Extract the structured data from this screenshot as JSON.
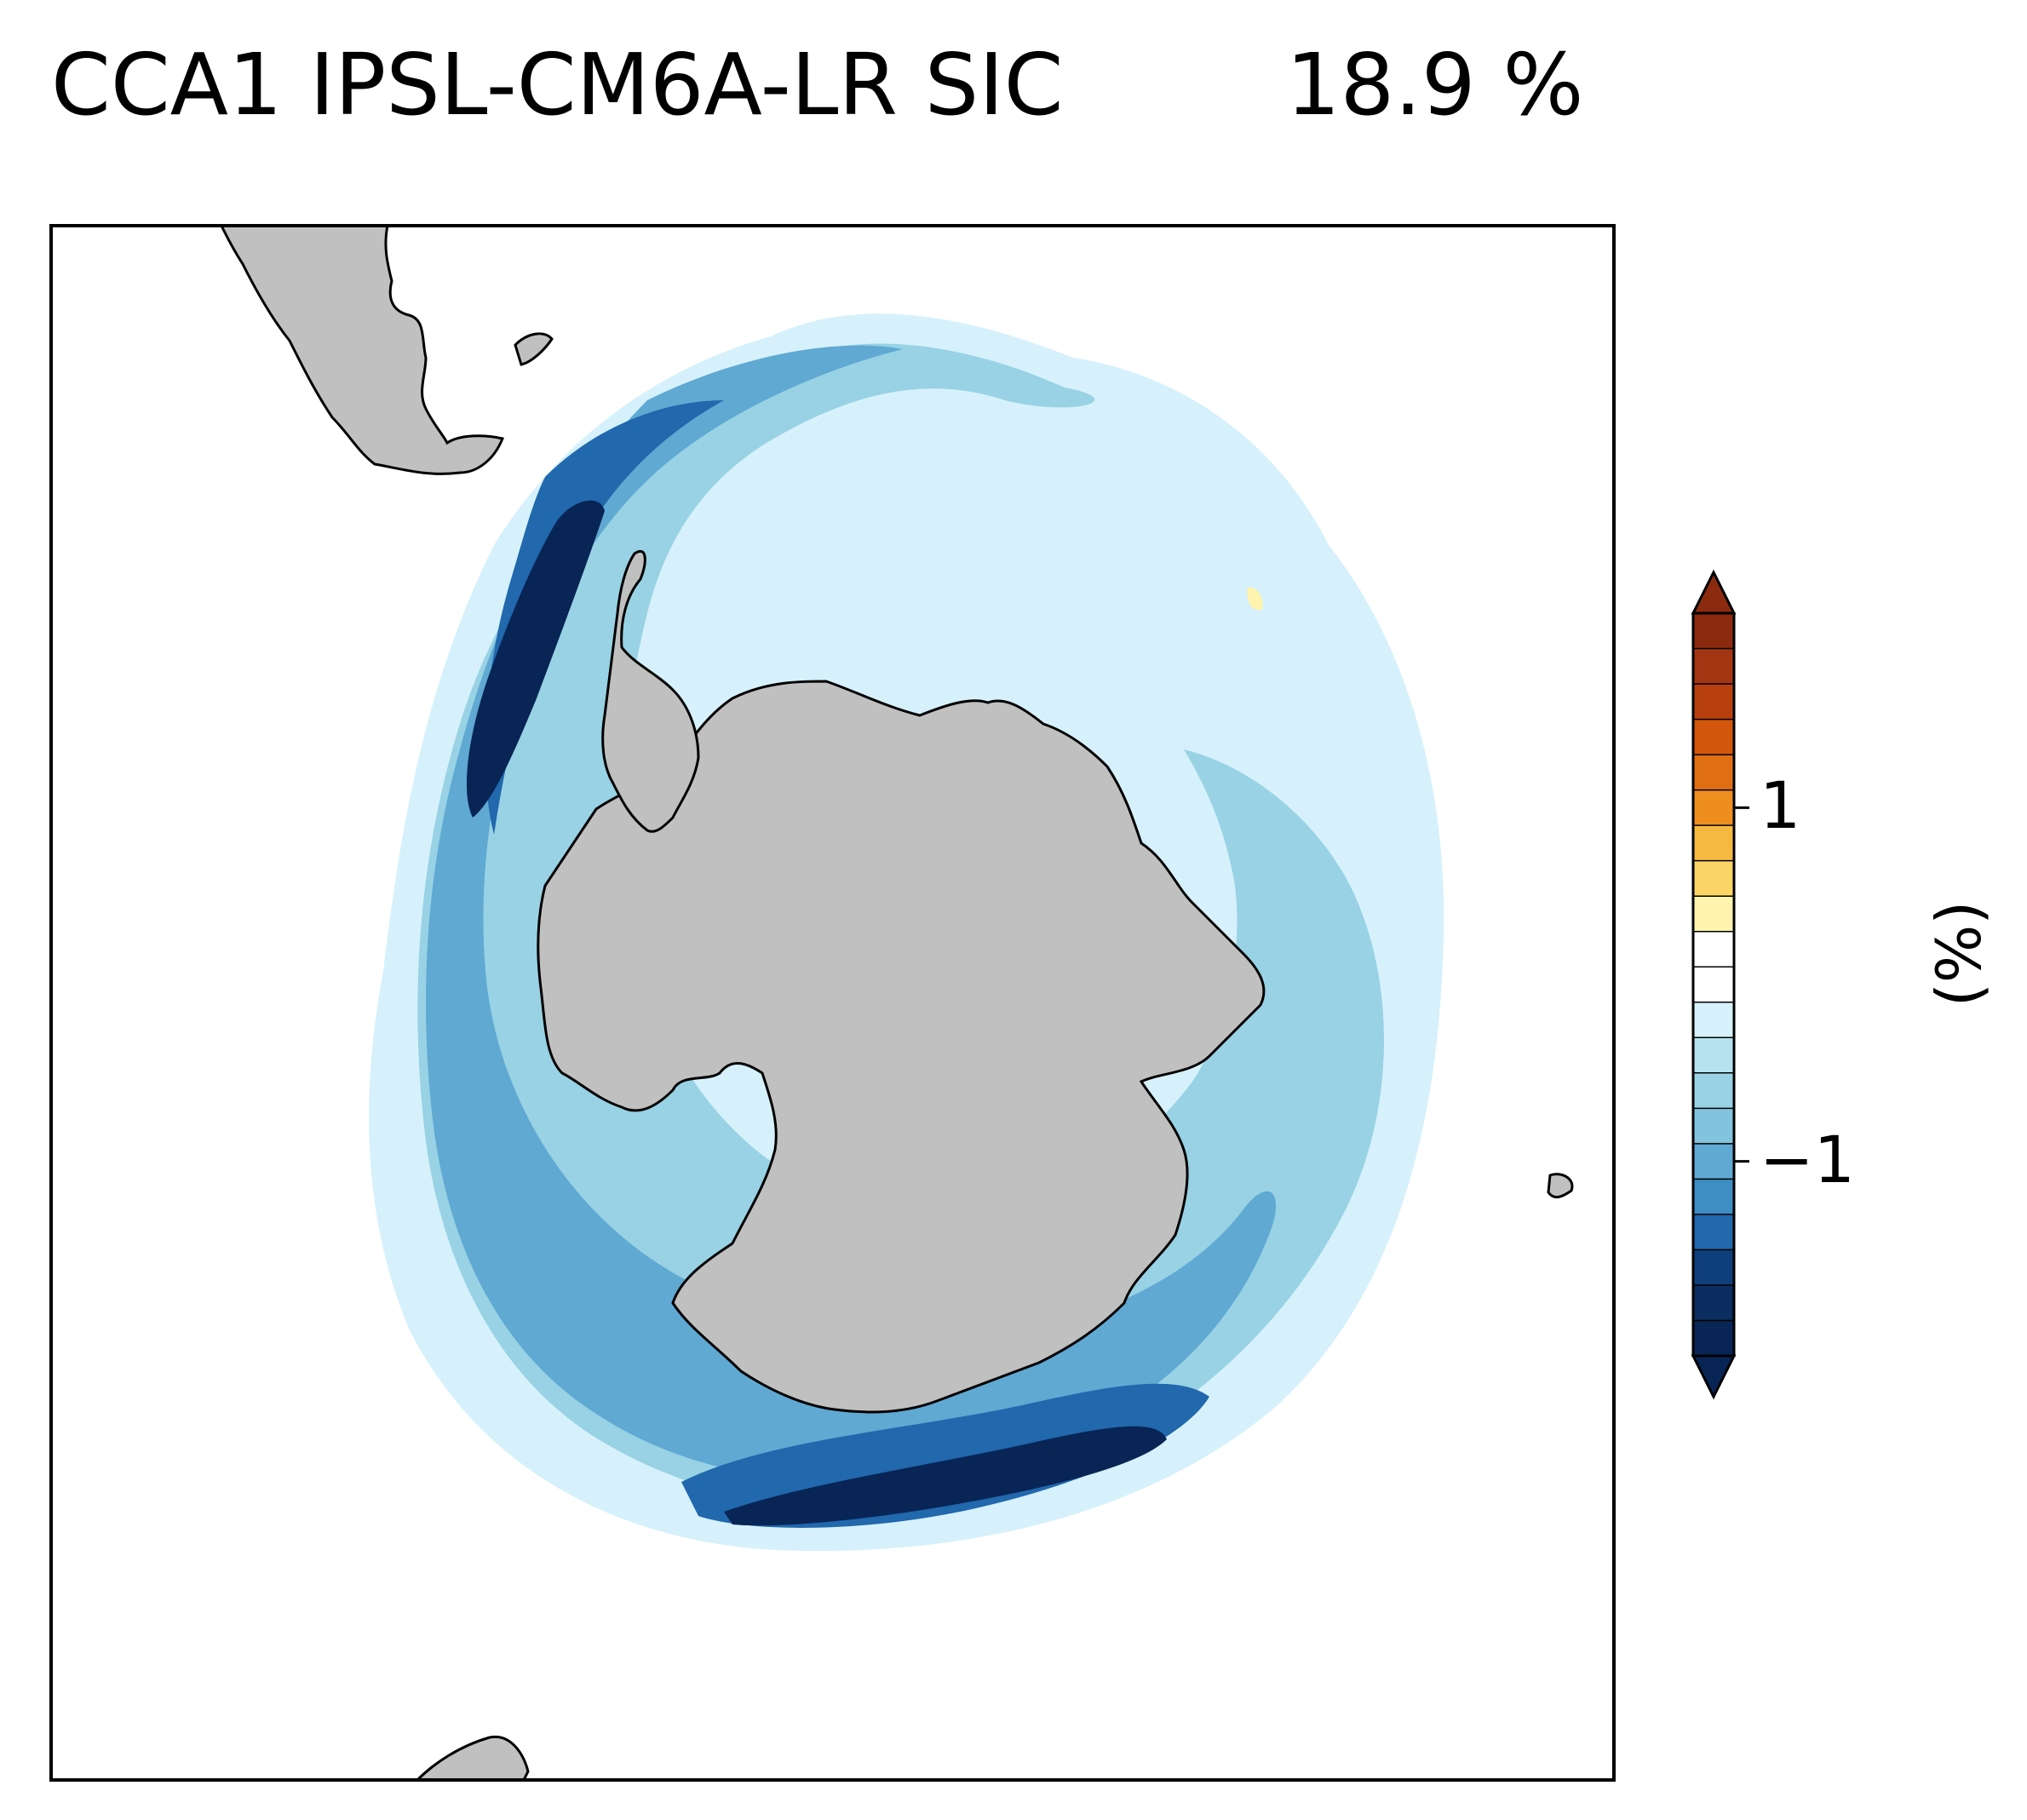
{
  "title": {
    "left": "CCA1 IPSL-CM6A-LR SIC",
    "right": "18.9 %"
  },
  "colorbar": {
    "unit_label": "(%)",
    "ticks": [
      {
        "value": 1,
        "label": "1"
      },
      {
        "value": -1,
        "label": "−1"
      }
    ],
    "colors_top_to_bottom": [
      "#8c2a10",
      "#a33512",
      "#b8400f",
      "#d2560b",
      "#e06f14",
      "#ee8e1f",
      "#f5b942",
      "#fad566",
      "#fff3ad",
      "#ffffff",
      "#ffffff",
      "#d6f1fb",
      "#b6e2f0",
      "#98d2e4",
      "#82c4de",
      "#5fa9d3",
      "#3e8dc5",
      "#2168ad",
      "#0f3f7a",
      "#0b2d5f",
      "#082556"
    ],
    "extend_top_color": "#8c2a10",
    "extend_bottom_color": "#082556"
  },
  "map": {
    "projection": "south-polar-stereographic",
    "land_color": "#c0c0c0",
    "ocean_color": "#ffffff"
  }
}
